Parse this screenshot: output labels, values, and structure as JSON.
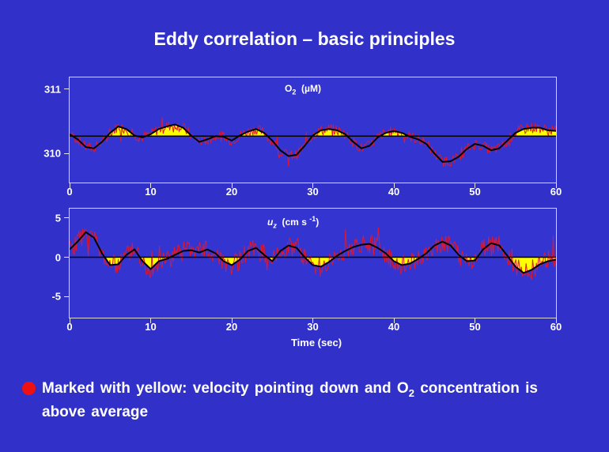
{
  "title": "Eddy correlation – basic principles",
  "colors": {
    "background": "#3131c9",
    "raw": "#dd1830",
    "fill": "#ffff00",
    "smooth": "#000000"
  },
  "chart_data": [
    {
      "type": "line",
      "label_main": "O",
      "label_sub": "2",
      "label_unit": "(µM)",
      "xlim": [
        0,
        60
      ],
      "ylim": [
        309.55,
        311.18
      ],
      "x_ticks": [
        "0",
        "10",
        "20",
        "30",
        "40",
        "50",
        "60"
      ],
      "y_ticks": [
        "310",
        "311"
      ],
      "y_tick_values": [
        310,
        311
      ],
      "mean": 310.27,
      "fill_where": "above_mean",
      "series": [
        {
          "role": "smoothed",
          "x": [
            0,
            1,
            2,
            3,
            4,
            5,
            6,
            7,
            8,
            9,
            10,
            11,
            12,
            13,
            14,
            15,
            16,
            17,
            18,
            19,
            20,
            21,
            22,
            23,
            24,
            25,
            26,
            27,
            28,
            29,
            30,
            31,
            32,
            33,
            34,
            35,
            36,
            37,
            38,
            39,
            40,
            41,
            42,
            43,
            44,
            45,
            46,
            47,
            48,
            49,
            50,
            51,
            52,
            53,
            54,
            55,
            56,
            57,
            58,
            59,
            60
          ],
          "y": [
            310.3,
            310.22,
            310.1,
            310.08,
            310.18,
            310.32,
            310.42,
            310.38,
            310.28,
            310.25,
            310.3,
            310.38,
            310.42,
            310.45,
            310.4,
            310.28,
            310.18,
            310.22,
            310.27,
            310.26,
            310.2,
            310.28,
            310.34,
            310.38,
            310.32,
            310.2,
            310.05,
            309.96,
            309.98,
            310.12,
            310.28,
            310.36,
            310.38,
            310.36,
            310.3,
            310.18,
            310.08,
            310.12,
            310.25,
            310.32,
            310.35,
            310.32,
            310.26,
            310.22,
            310.15,
            310.0,
            309.87,
            309.88,
            309.95,
            310.07,
            310.15,
            310.12,
            310.05,
            310.08,
            310.2,
            310.32,
            310.38,
            310.4,
            310.4,
            310.36,
            310.35
          ]
        }
      ]
    },
    {
      "type": "line",
      "label_main": "u",
      "label_sub": "z",
      "label_unit": "(cm s",
      "label_sup": "-1",
      "label_close": ")",
      "xlim": [
        0,
        60
      ],
      "ylim": [
        -7.7,
        6.2
      ],
      "x_ticks": [
        "0",
        "10",
        "20",
        "30",
        "40",
        "50",
        "60"
      ],
      "y_ticks": [
        "5",
        "0",
        "-5"
      ],
      "y_tick_values": [
        5,
        0,
        -5
      ],
      "mean": 0,
      "fill_where": "below_mean",
      "xlabel": "Time  (sec)",
      "series": [
        {
          "role": "smoothed",
          "x": [
            0,
            1,
            2,
            3,
            4,
            5,
            6,
            7,
            8,
            9,
            10,
            11,
            12,
            13,
            14,
            15,
            16,
            17,
            18,
            19,
            20,
            21,
            22,
            23,
            24,
            25,
            26,
            27,
            28,
            29,
            30,
            31,
            32,
            33,
            34,
            35,
            36,
            37,
            38,
            39,
            40,
            41,
            42,
            43,
            44,
            45,
            46,
            47,
            48,
            49,
            50,
            51,
            52,
            53,
            54,
            55,
            56,
            57,
            58,
            59,
            60
          ],
          "y": [
            1.0,
            2.0,
            3.2,
            2.5,
            0.5,
            -1.0,
            -0.9,
            0.3,
            1.0,
            -0.5,
            -1.5,
            -0.5,
            -0.2,
            0.3,
            0.8,
            0.9,
            0.6,
            1.0,
            0.5,
            -0.5,
            -1.0,
            -0.3,
            0.8,
            1.2,
            0.3,
            -0.5,
            0.8,
            1.5,
            1.2,
            0.0,
            -1.0,
            -1.2,
            -0.6,
            0.2,
            0.8,
            1.3,
            1.6,
            1.7,
            1.2,
            0.5,
            -0.5,
            -1.0,
            -0.8,
            -0.2,
            0.5,
            1.5,
            2.0,
            1.5,
            0.3,
            -0.5,
            -0.4,
            1.0,
            1.8,
            1.5,
            0.2,
            -1.2,
            -2.0,
            -1.6,
            -0.9,
            -0.5,
            -0.3
          ]
        }
      ]
    }
  ],
  "note": {
    "part1": "Marked with yellow:   velocity pointing down and O",
    "sub": "2",
    "part2": " concentration is above average"
  }
}
